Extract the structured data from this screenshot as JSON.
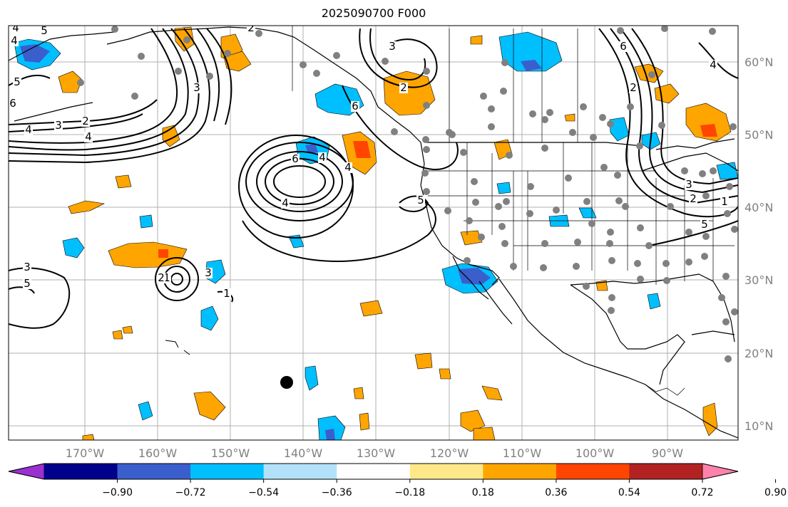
{
  "title": "2025090700 F000",
  "map": {
    "lat_labels": [
      "60°N",
      "50°N",
      "40°N",
      "30°N",
      "20°N",
      "10°N"
    ],
    "lon_labels": [
      "170°W",
      "160°W",
      "150°W",
      "140°W",
      "130°W",
      "120°W",
      "110°W",
      "100°W",
      "90°W"
    ],
    "contour_labels": [
      "5",
      "4",
      "5",
      "6",
      "4",
      "3",
      "2",
      "4",
      "3",
      "4",
      "6",
      "4",
      "4",
      "3",
      "5",
      "1",
      "2",
      "3",
      "1",
      "2",
      "3",
      "6",
      "5",
      "2",
      "6",
      "3",
      "2",
      "1",
      "5",
      "4",
      "2",
      "4"
    ],
    "colors": {
      "grid": "#b0b0b0",
      "land": "#000000",
      "contour": "#000000",
      "station": "#808080"
    }
  },
  "colorbar": {
    "ticks": [
      "−0.90",
      "−0.72",
      "−0.54",
      "−0.36",
      "−0.18",
      "0.18",
      "0.36",
      "0.54",
      "0.72",
      "0.90"
    ],
    "colors": [
      "#9b30d0",
      "#00008b",
      "#3a5fcd",
      "#00bfff",
      "#b2e2fa",
      "#ffffff",
      "#ffe88a",
      "#ffa500",
      "#ff4500",
      "#b22222",
      "#ff82ab"
    ]
  }
}
